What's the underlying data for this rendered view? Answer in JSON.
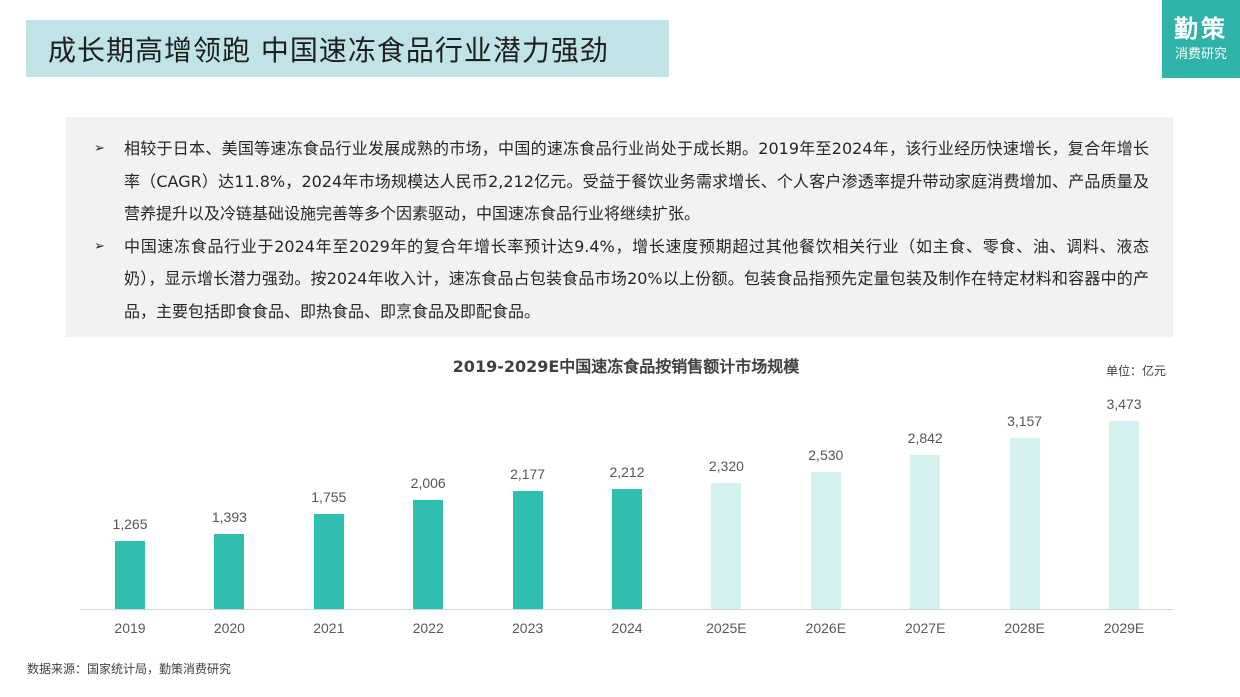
{
  "header": {
    "title": "成长期高增领跑  中国速冻食品行业潜力强劲",
    "logo_main": "勤策",
    "logo_sub": "消费研究"
  },
  "summary": {
    "bullet_icon": "arrow-bullet-icon",
    "bullets": [
      {
        "text": "相较于日本、美国等速冻食品行业发展成熟的市场，中国的速冻食品行业尚处于成长期。2019年至2024年，该行业经历快速增长，复合年增长率（CAGR）达11.8%，2024年市场规模达人民币2,212亿元。受益于餐饮业务需求增长、个人客户渗透率提升带动家庭消费增加、产品质量及营养提升以及冷链基础设施完善等多个因素驱动，中国速冻食品行业将继续扩张。"
      },
      {
        "text": "中国速冻食品行业于2024年至2029年的复合年增长率预计达9.4%，增长速度预期超过其他餐饮相关行业（如主食、零食、油、调料、液态奶），显示增长潜力强劲。按2024年收入计，速冻食品占包装食品市场20%以上份额。包装食品指预先定量包装及制作在特定材料和容器中的产品，主要包括即食食品、即热食品、即烹食品及即配食品。"
      }
    ]
  },
  "chart": {
    "unit": "单位：亿元",
    "colors": {
      "actual": "#2fbfb1",
      "forecast": "#d3f1ef"
    }
  },
  "chart_data": {
    "type": "bar",
    "title": "2019-2029E中国速冻食品按销售额计市场规模",
    "xlabel": "",
    "ylabel": "单位：亿元",
    "categories": [
      "2019",
      "2020",
      "2021",
      "2022",
      "2023",
      "2024",
      "2025E",
      "2026E",
      "2027E",
      "2028E",
      "2029E"
    ],
    "values": [
      1265,
      1393,
      1755,
      2006,
      2177,
      2212,
      2320,
      2530,
      2842,
      3157,
      3473
    ],
    "value_labels": [
      "1,265",
      "1,393",
      "1,755",
      "2,006",
      "2,177",
      "2,212",
      "2,320",
      "2,530",
      "2,842",
      "3,157",
      "3,473"
    ],
    "series_type": [
      "actual",
      "actual",
      "actual",
      "actual",
      "actual",
      "actual",
      "forecast",
      "forecast",
      "forecast",
      "forecast",
      "forecast"
    ],
    "ylim": [
      0,
      3500
    ],
    "grid": false,
    "legend": "none"
  },
  "footer": {
    "source": "数据来源：国家统计局，勤策消费研究"
  }
}
